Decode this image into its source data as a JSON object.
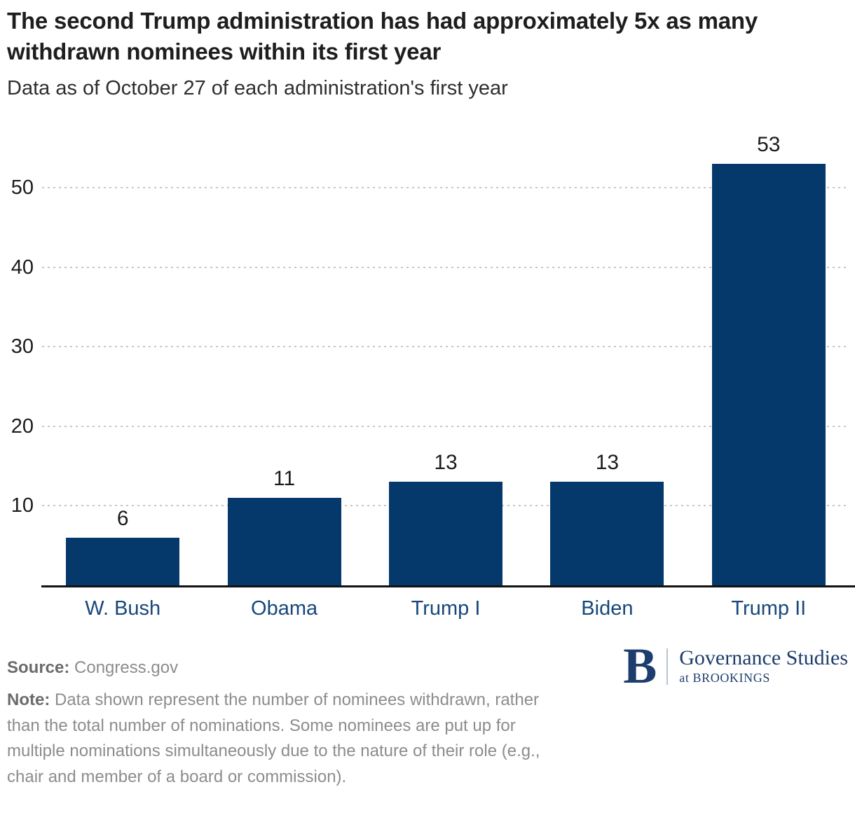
{
  "header": {
    "title": "The second Trump administration has had approximately 5x as many withdrawn nominees within its first year",
    "subtitle": "Data as of October 27 of each administration's first year"
  },
  "chart_data": {
    "type": "bar",
    "categories": [
      "W. Bush",
      "Obama",
      "Trump I",
      "Biden",
      "Trump II"
    ],
    "values": [
      6,
      11,
      13,
      13,
      53
    ],
    "value_labels": [
      "6",
      "11",
      "13",
      "13",
      "53"
    ],
    "yticks": [
      10,
      20,
      30,
      40,
      50
    ],
    "ylim": [
      0,
      55
    ],
    "grid": "horizontal-dotted",
    "legend": "none",
    "xlabel": "",
    "ylabel": "",
    "bar_color": "#06396b",
    "gridline_color": "#c7c7c7",
    "category_label_color": "#17477b"
  },
  "footer": {
    "source_label": "Source:",
    "source_text": "Congress.gov",
    "note_label": "Note:",
    "note_text": "Data shown represent the number of nominees withdrawn, rather than the total number of nominations. Some nominees are put up for multiple nominations simultaneously due to the nature of their role (e.g., chair and member of a board or commission)."
  },
  "logo": {
    "letter": "B",
    "name": "Governance Studies",
    "sub": "at BROOKINGS"
  }
}
